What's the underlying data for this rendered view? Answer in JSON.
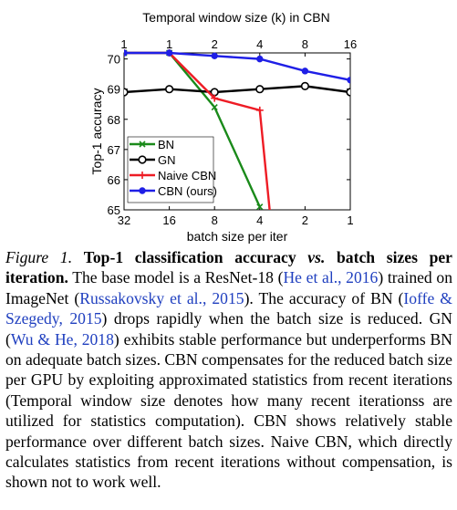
{
  "chart_data": {
    "type": "line",
    "top_axis_label": "Temporal window size (k) in CBN",
    "top_tick_labels": [
      "1",
      "1",
      "2",
      "4",
      "8",
      "16"
    ],
    "xlabel": "batch size per iter",
    "x_tick_labels": [
      "32",
      "16",
      "8",
      "4",
      "2",
      "1"
    ],
    "ylabel": "Top-1 accuracy",
    "ylim": [
      65,
      70.2
    ],
    "y_ticks": [
      65,
      66,
      67,
      68,
      69,
      70
    ],
    "grid": false,
    "legend_position": "bottom-left",
    "series": [
      {
        "name": "BN",
        "color": "#1a8a1a",
        "marker": "x",
        "points": [
          [
            32,
            70.2
          ],
          [
            16,
            70.2
          ],
          [
            8,
            68.4
          ],
          [
            4,
            65.1
          ]
        ]
      },
      {
        "name": "GN",
        "color": "#000000",
        "marker": "o",
        "points": [
          [
            32,
            68.9
          ],
          [
            16,
            69.0
          ],
          [
            8,
            68.9
          ],
          [
            4,
            69.0
          ],
          [
            2,
            69.1
          ],
          [
            1,
            68.9
          ]
        ]
      },
      {
        "name": "Naive CBN",
        "color": "#ee1c25",
        "marker": "+",
        "points": [
          [
            32,
            70.2
          ],
          [
            16,
            70.2
          ],
          [
            8,
            68.7
          ],
          [
            4,
            68.3
          ]
        ]
      },
      {
        "name": "CBN (ours)",
        "color": "#1f1fe6",
        "marker": "dot",
        "points": [
          [
            32,
            70.2
          ],
          [
            16,
            70.2
          ],
          [
            8,
            70.1
          ],
          [
            4,
            70.0
          ],
          [
            2,
            69.6
          ],
          [
            1,
            69.3
          ]
        ]
      }
    ]
  },
  "caption": {
    "label": "Figure 1.",
    "title_prefix": "Top-1 classification accuracy ",
    "title_vs": "vs.",
    "title_suffix": " batch sizes per iteration.",
    "t1": " The base model is a ResNet-18 (",
    "c1": "He et al., 2016",
    "t2": ") trained on ImageNet (",
    "c2": "Russakovsky et al., 2015",
    "t3": "). The accuracy of BN (",
    "c3": "Ioffe & Szegedy, 2015",
    "t4": ") drops rapidly when the batch size is reduced. GN (",
    "c4": "Wu & He, 2018",
    "t5": ") exhibits stable performance but underperforms BN on adequate batch sizes. CBN compensates for the reduced batch size per GPU by exploiting approximated statistics from recent iterations (Temporal window size denotes how many recent iterationss are utilized for statistics computation). CBN shows relatively stable performance over different batch sizes. Naive CBN, which directly calculates statistics from recent iterations without compensation, is shown not to work well."
  }
}
